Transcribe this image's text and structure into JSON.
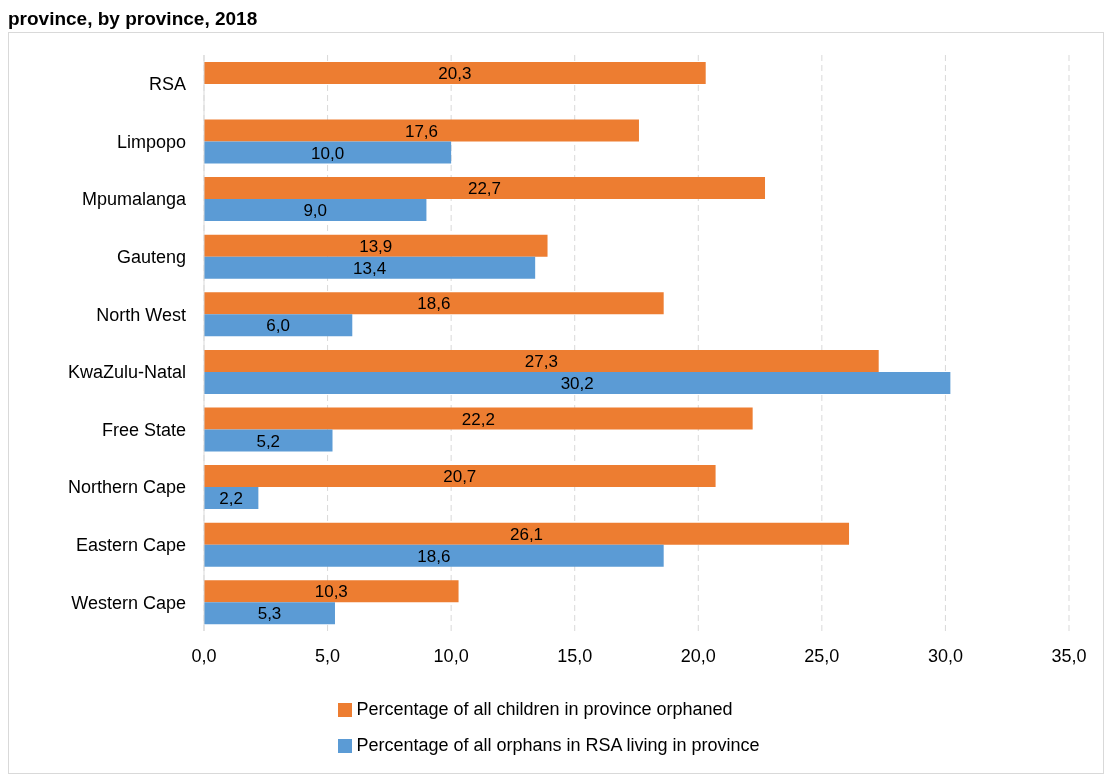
{
  "chart_data": {
    "type": "bar",
    "orientation": "horizontal",
    "title": "province, by province, 2018",
    "categories": [
      "RSA",
      "Limpopo",
      "Mpumalanga",
      "Gauteng",
      "North West",
      "KwaZulu-Natal",
      "Free State",
      "Northern Cape",
      "Eastern Cape",
      "Western Cape"
    ],
    "series": [
      {
        "name": "Percentage of all children in province orphaned",
        "color": "#ed7d31",
        "values": [
          20.3,
          17.6,
          22.7,
          13.9,
          18.6,
          27.3,
          22.2,
          20.7,
          26.1,
          10.3
        ],
        "value_labels": [
          "20,3",
          "17,6",
          "22,7",
          "13,9",
          "18,6",
          "27,3",
          "22,2",
          "20,7",
          "26,1",
          "10,3"
        ]
      },
      {
        "name": "Percentage of all orphans in RSA living in province",
        "color": "#5b9bd5",
        "values": [
          null,
          10.0,
          9.0,
          13.4,
          6.0,
          30.2,
          5.2,
          2.2,
          18.6,
          5.3
        ],
        "value_labels": [
          null,
          "10,0",
          "9,0",
          "13,4",
          "6,0",
          "30,2",
          "5,2",
          "2,2",
          "18,6",
          "5,3"
        ]
      }
    ],
    "xlim": [
      0,
      35
    ],
    "xticks": [
      {
        "value": 0,
        "label": "0,0"
      },
      {
        "value": 5,
        "label": "5,0"
      },
      {
        "value": 10,
        "label": "10,0"
      },
      {
        "value": 15,
        "label": "15,0"
      },
      {
        "value": 20,
        "label": "20,0"
      },
      {
        "value": 25,
        "label": "25,0"
      },
      {
        "value": 30,
        "label": "30,0"
      },
      {
        "value": 35,
        "label": "35,0"
      }
    ],
    "grid": "x",
    "legend": "bottom"
  }
}
